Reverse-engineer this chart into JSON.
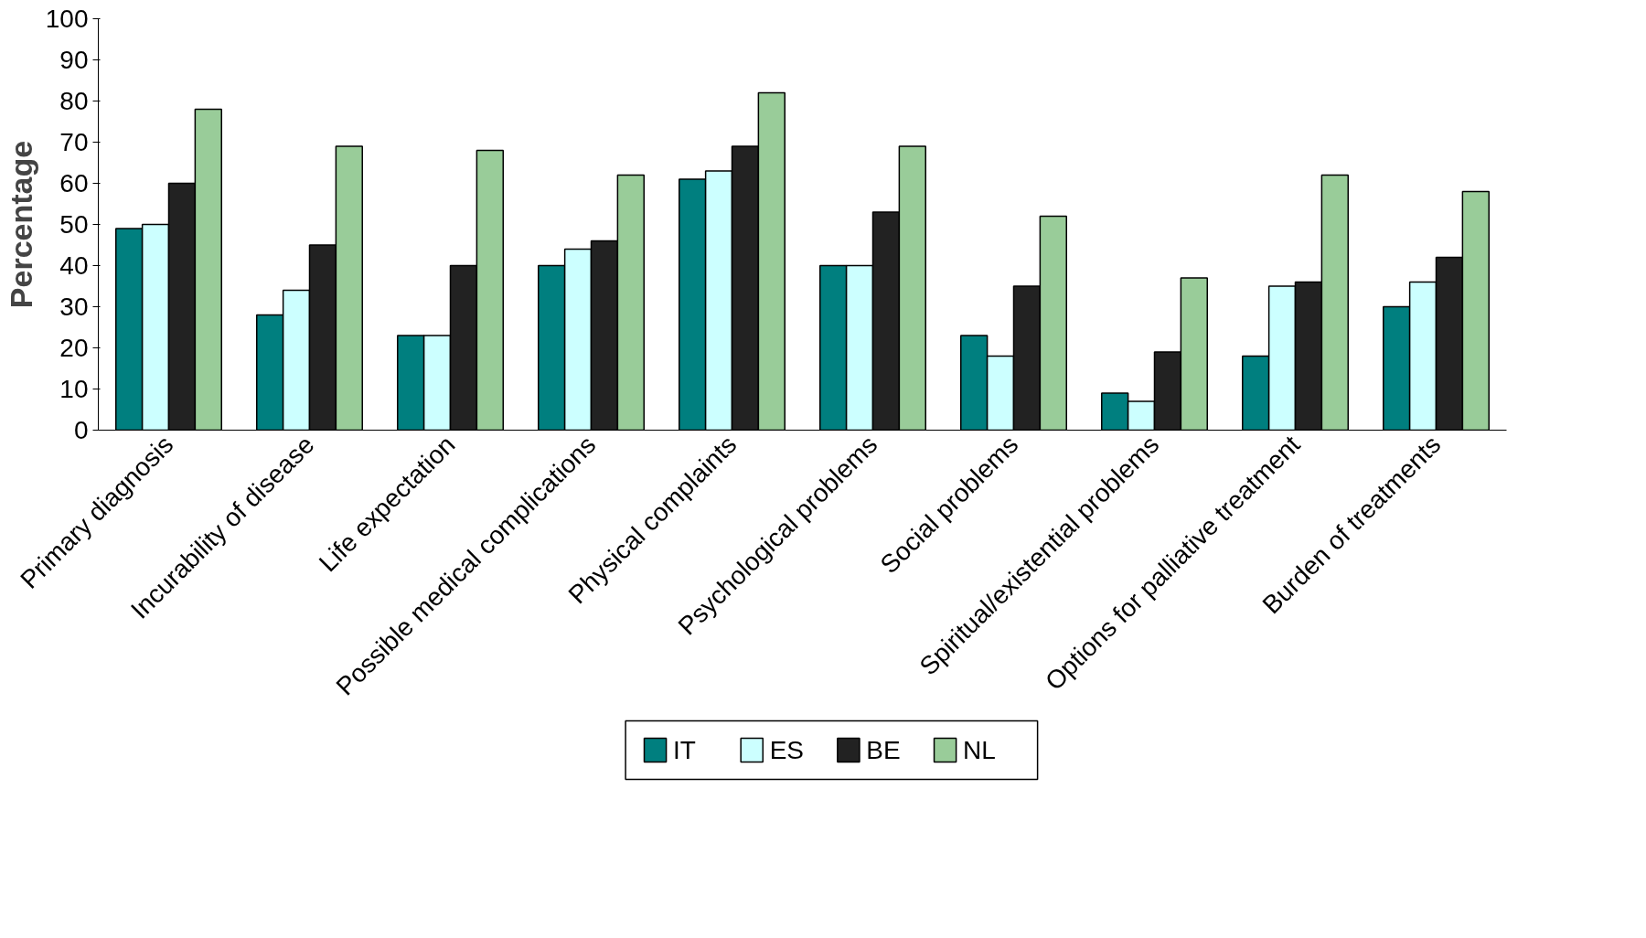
{
  "chart_data": {
    "type": "bar",
    "ylabel": "Percentage",
    "categories": [
      "Primary diagnosis",
      "Incurability of disease",
      "Life expectation",
      "Possible medical complications",
      "Physical complaints",
      "Psychological problems",
      "Social problems",
      "Spiritual/existential problems",
      "Options for palliative treatment",
      "Burden of treatments"
    ],
    "series": [
      {
        "name": "IT",
        "color": "#007f7f",
        "values": [
          49,
          28,
          23,
          40,
          61,
          40,
          23,
          9,
          18,
          30
        ]
      },
      {
        "name": "ES",
        "color": "#ccffff",
        "values": [
          50,
          34,
          23,
          44,
          63,
          40,
          18,
          7,
          35,
          36
        ]
      },
      {
        "name": "BE",
        "color": "#222222",
        "values": [
          60,
          45,
          40,
          46,
          69,
          53,
          35,
          19,
          36,
          42
        ]
      },
      {
        "name": "NL",
        "color": "#99cc99",
        "values": [
          78,
          69,
          68,
          62,
          82,
          69,
          52,
          37,
          62,
          58
        ]
      }
    ],
    "ylim": [
      0,
      100
    ],
    "yticks": [
      0,
      10,
      20,
      30,
      40,
      50,
      60,
      70,
      80,
      90,
      100
    ],
    "grid": false,
    "legend": "bottom"
  }
}
